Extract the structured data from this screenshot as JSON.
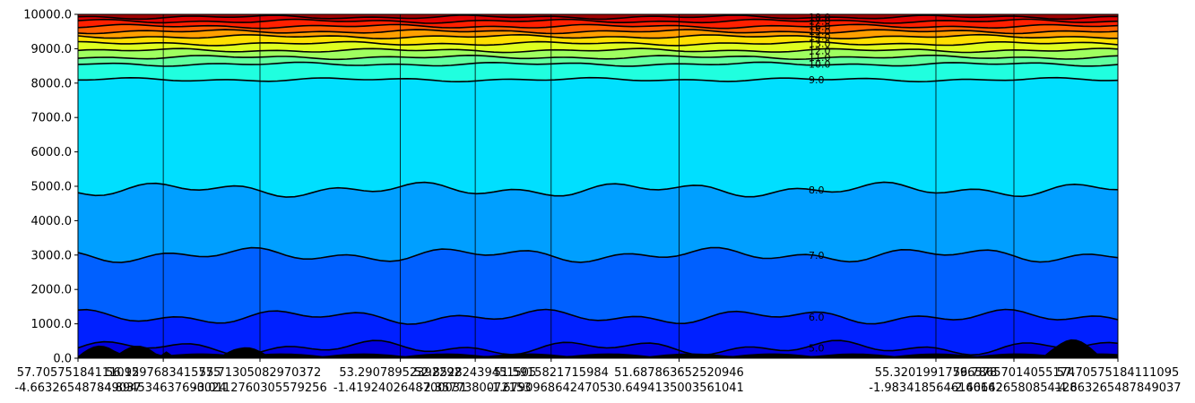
{
  "chart_data": {
    "type": "contour",
    "title": "",
    "xlabel": "",
    "ylabel": "",
    "ylim": [
      0,
      10000
    ],
    "y_ticks": [
      "0.0",
      "1000.0",
      "2000.0",
      "3000.0",
      "4000.0",
      "5000.0",
      "6000.0",
      "7000.0",
      "8000.0",
      "9000.0",
      "10000.0"
    ],
    "x_range": [
      0,
      1
    ],
    "x_ticks": [
      {
        "x": 0.0,
        "lat": "57.70575184111095",
        "lon": "-4.663265487849037"
      },
      {
        "x": 0.082,
        "lat": "56.1297683415775",
        "lon": "-4.894534637690024"
      },
      {
        "x": 0.175,
        "lat": "55.71305082970372",
        "lon": "-3.0112760305579256"
      },
      {
        "x": 0.31,
        "lat": "53.29078952392292",
        "lon": "-1.4192402648700031"
      },
      {
        "x": 0.382,
        "lat": "52.85282439451505",
        "lon": "-2.3577380072153"
      },
      {
        "x": 0.455,
        "lat": "51.5915821715984",
        "lon": "-1.679096864247053"
      },
      {
        "x": 0.578,
        "lat": "51.687863652520946",
        "lon": "0.6494135003561041"
      },
      {
        "x": 0.825,
        "lat": "55.32019917796578",
        "lon": "-1.9834185646166162"
      },
      {
        "x": 0.9,
        "lat": "56.78657014055174",
        "lon": "-2.406426580854128"
      },
      {
        "x": 1.0,
        "lat": "57.70575184111095",
        "lon": "-4.663265487849037"
      }
    ],
    "colormap": "jet",
    "contour_levels": [
      5.0,
      6.0,
      7.0,
      8.0,
      9.0,
      10.0,
      11.0,
      12.0,
      13.0,
      14.0,
      15.0,
      16.0,
      17.0,
      18.0
    ],
    "contour_labels": [
      "5.0",
      "6.0",
      "7.0",
      "8.0",
      "9.0",
      "10.0",
      "11.0",
      "12.0",
      "13.0",
      "14.0",
      "15.0",
      "16.0",
      "17.0",
      "18.0"
    ],
    "layers": [
      {
        "level": 5.0,
        "height": 300
      },
      {
        "level": 6.0,
        "height": 1200
      },
      {
        "level": 7.0,
        "height": 3000
      },
      {
        "level": 8.0,
        "height": 4900
      },
      {
        "level": 9.0,
        "height": 8100
      },
      {
        "level": 10.0,
        "height": 8550
      },
      {
        "level": 11.0,
        "height": 8750
      },
      {
        "level": 12.0,
        "height": 8950
      },
      {
        "level": 13.0,
        "height": 9150
      },
      {
        "level": 14.0,
        "height": 9350
      },
      {
        "level": 15.0,
        "height": 9500
      },
      {
        "level": 16.0,
        "height": 9650
      },
      {
        "level": 17.0,
        "height": 9800
      },
      {
        "level": 18.0,
        "height": 9920
      }
    ],
    "colors": {
      "terrain": "#000000",
      "contour_line": "#000000"
    }
  }
}
